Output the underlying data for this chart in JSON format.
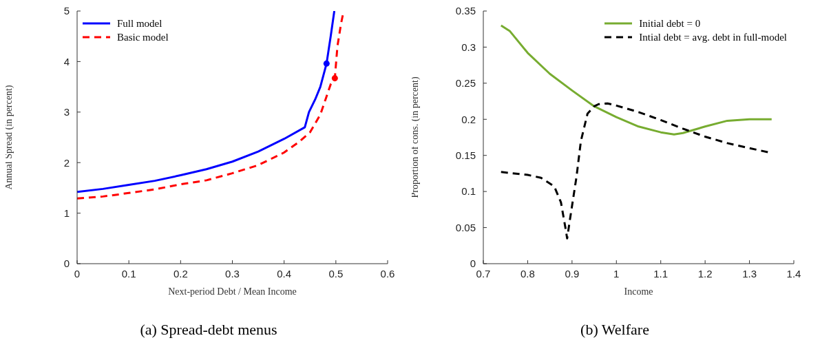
{
  "chart_data": [
    {
      "type": "line",
      "title": "(a) Spread-debt menus",
      "xlabel": "Next-period Debt / Mean Income",
      "ylabel": "Annual Spread (in percent)",
      "xlim": [
        0,
        0.6
      ],
      "xticks": [
        0,
        0.1,
        0.2,
        0.3,
        0.4,
        0.5,
        0.6
      ],
      "ylim": [
        0,
        5
      ],
      "yticks": [
        0,
        1,
        2,
        3,
        4,
        5
      ],
      "grid": false,
      "legend": "top left",
      "series": [
        {
          "name": "Full model",
          "color": "#0000ff",
          "line_style": "solid",
          "x": [
            0,
            0.05,
            0.1,
            0.15,
            0.2,
            0.25,
            0.3,
            0.35,
            0.4,
            0.44,
            0.448,
            0.46,
            0.47,
            0.482,
            0.49,
            0.497
          ],
          "values": [
            1.42,
            1.48,
            1.56,
            1.64,
            1.75,
            1.87,
            2.02,
            2.22,
            2.47,
            2.7,
            3.0,
            3.25,
            3.5,
            3.96,
            4.5,
            5.0
          ]
        },
        {
          "name": "Basic model",
          "color": "#ff0000",
          "line_style": "dashed",
          "x": [
            0,
            0.05,
            0.08,
            0.1,
            0.15,
            0.2,
            0.25,
            0.3,
            0.35,
            0.4,
            0.43,
            0.45,
            0.47,
            0.48,
            0.49,
            0.498,
            0.503,
            0.51,
            0.515
          ],
          "values": [
            1.29,
            1.33,
            1.37,
            1.4,
            1.47,
            1.57,
            1.65,
            1.79,
            1.95,
            2.2,
            2.42,
            2.6,
            2.95,
            3.25,
            3.55,
            3.67,
            4.3,
            4.75,
            5.0
          ]
        },
        {
          "type": "scatter",
          "color": "#0000ff",
          "marker": "circle",
          "x": [
            0.482
          ],
          "values": [
            3.96
          ]
        },
        {
          "type": "scatter",
          "color": "#ff0000",
          "marker": "circle",
          "x": [
            0.498
          ],
          "values": [
            3.67
          ]
        }
      ]
    },
    {
      "type": "line",
      "title": "(b) Welfare",
      "xlabel": "Income",
      "ylabel": "Proportion of cons. (in percent)",
      "xlim": [
        0.7,
        1.4
      ],
      "xticks": [
        0.7,
        0.8,
        0.9,
        1,
        1.1,
        1.2,
        1.3,
        1.4
      ],
      "ylim": [
        0,
        0.35
      ],
      "yticks": [
        0,
        0.05,
        0.1,
        0.15,
        0.2,
        0.25,
        0.3,
        0.35
      ],
      "grid": false,
      "legend": "top right",
      "series": [
        {
          "name": "Initial debt = 0",
          "color": "#77ac30",
          "line_style": "solid",
          "x": [
            0.74,
            0.76,
            0.8,
            0.85,
            0.9,
            0.95,
            1.0,
            1.05,
            1.1,
            1.13,
            1.15,
            1.2,
            1.25,
            1.3,
            1.35
          ],
          "values": [
            0.33,
            0.322,
            0.292,
            0.263,
            0.24,
            0.218,
            0.203,
            0.19,
            0.182,
            0.179,
            0.181,
            0.19,
            0.198,
            0.2,
            0.2
          ]
        },
        {
          "name": "Intial debt = avg. debt in full-model",
          "color": "#000000",
          "line_style": "dashed",
          "x": [
            0.74,
            0.8,
            0.83,
            0.86,
            0.875,
            0.885,
            0.889,
            0.895,
            0.91,
            0.92,
            0.935,
            0.95,
            0.96,
            0.98,
            1.0,
            1.05,
            1.1,
            1.15,
            1.2,
            1.25,
            1.3,
            1.345
          ],
          "values": [
            0.127,
            0.123,
            0.119,
            0.107,
            0.085,
            0.05,
            0.035,
            0.06,
            0.12,
            0.17,
            0.208,
            0.218,
            0.221,
            0.222,
            0.219,
            0.21,
            0.199,
            0.187,
            0.176,
            0.167,
            0.16,
            0.154
          ]
        }
      ]
    }
  ]
}
